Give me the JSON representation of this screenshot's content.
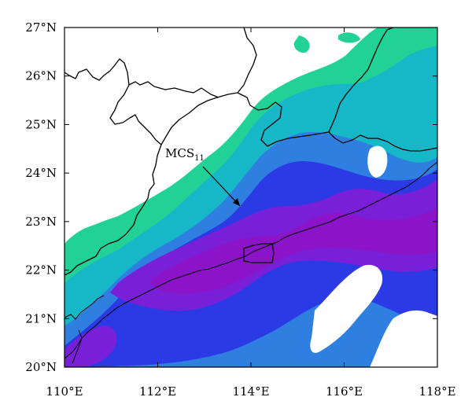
{
  "map": {
    "x_ticks": [
      "110°E",
      "112°E",
      "114°E",
      "116°E",
      "118°E"
    ],
    "y_ticks": [
      "27°N",
      "26°N",
      "25°N",
      "24°N",
      "23°N",
      "22°N",
      "21°N",
      "20°N"
    ],
    "annotation": {
      "label": "MCS",
      "subscript": "11"
    },
    "colors": {
      "level1": "#21d196",
      "level2": "#16b8c8",
      "level3": "#2f7fe0",
      "level4": "#2c3ae6",
      "level5": "#7a1fd8",
      "level6": "#8b14c9",
      "border": "#000000",
      "background": "#ffffff"
    }
  }
}
